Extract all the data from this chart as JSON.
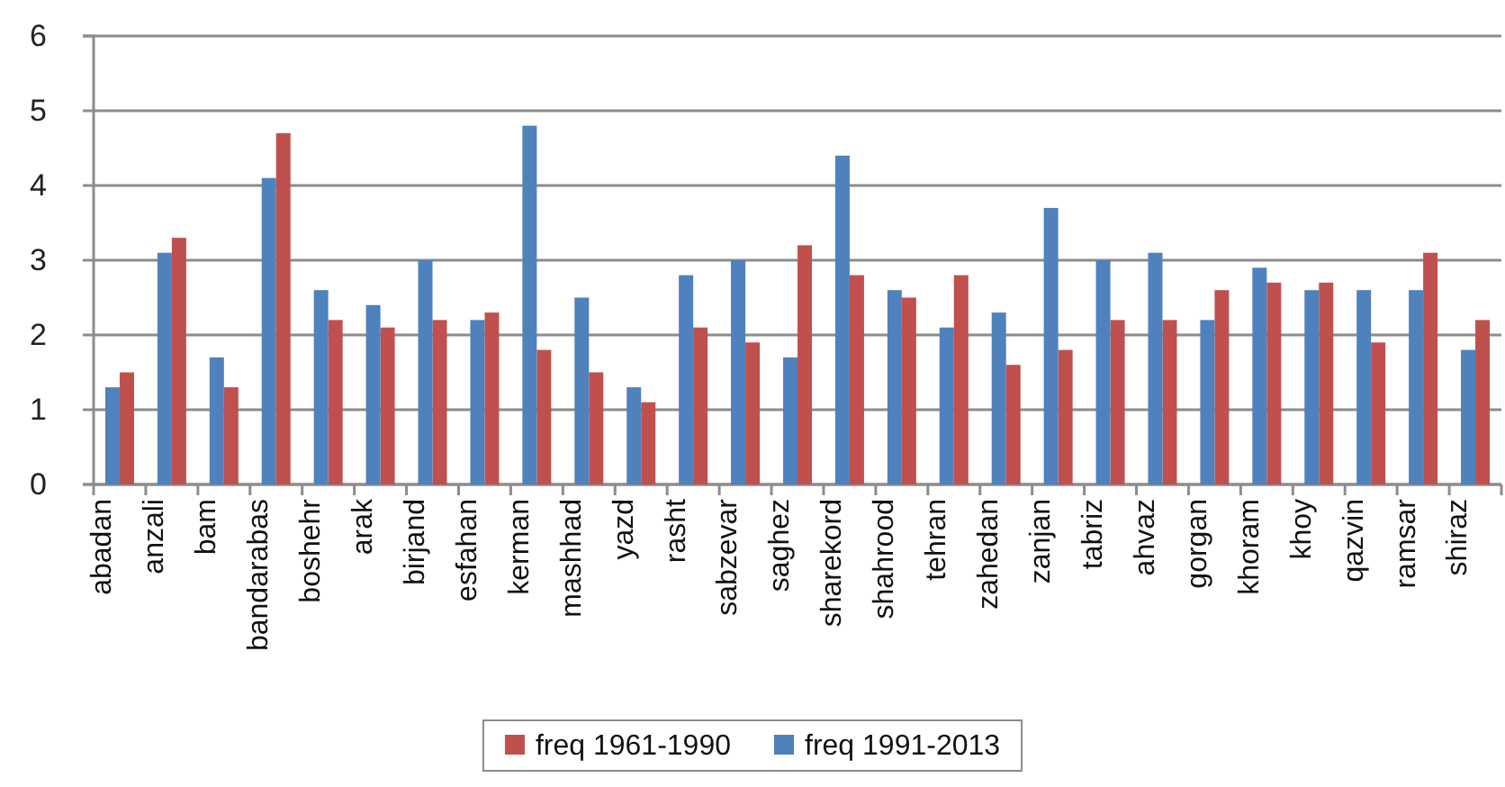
{
  "chart_data": {
    "type": "bar",
    "categories": [
      "abadan",
      "anzali",
      "bam",
      "bandarabas",
      "boshehr",
      "arak",
      "birjand",
      "esfahan",
      "kerman",
      "mashhad",
      "yazd",
      "rasht",
      "sabzevar",
      "saghez",
      "sharekord",
      "shahrood",
      "tehran",
      "zahedan",
      "zanjan",
      "tabriz",
      "ahvaz",
      "gorgan",
      "khoram",
      "khoy",
      "qazvin",
      "ramsar",
      "shiraz"
    ],
    "series": [
      {
        "name": "freq 1961-1990",
        "color": "#c0504d",
        "values": [
          1.5,
          3.3,
          1.3,
          4.7,
          2.2,
          2.1,
          2.2,
          2.3,
          1.8,
          1.5,
          1.1,
          2.1,
          1.9,
          3.2,
          2.8,
          2.5,
          2.8,
          1.6,
          1.8,
          2.2,
          2.2,
          2.6,
          2.7,
          2.7,
          1.9,
          3.1,
          2.2
        ]
      },
      {
        "name": "freq 1991-2013",
        "color": "#4f81bd",
        "values": [
          1.3,
          3.1,
          1.7,
          4.1,
          2.6,
          2.4,
          3.0,
          2.2,
          4.8,
          2.5,
          1.3,
          2.8,
          3.0,
          1.7,
          4.4,
          2.6,
          2.1,
          2.3,
          3.7,
          3.0,
          3.1,
          2.2,
          2.9,
          2.6,
          2.6,
          2.6,
          1.8
        ]
      }
    ],
    "ylim": [
      0,
      6
    ],
    "yticks": [
      0,
      1,
      2,
      3,
      4,
      5,
      6
    ],
    "grid": "y",
    "legend": "bottom"
  }
}
